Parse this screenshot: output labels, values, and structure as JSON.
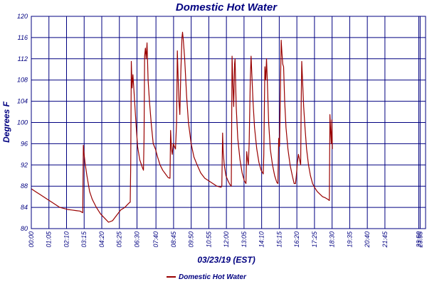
{
  "chart_data": {
    "type": "line",
    "title": "Domestic Hot Water",
    "xlabel": "03/23/19 (EST)",
    "ylabel": "Degrees F",
    "ylim": [
      80,
      120
    ],
    "yticks": [
      80,
      84,
      88,
      92,
      96,
      100,
      104,
      108,
      112,
      116,
      120
    ],
    "xlim": [
      0,
      1455
    ],
    "xticks": [
      {
        "label": "00:00",
        "t": 0
      },
      {
        "label": "01:05",
        "t": 65
      },
      {
        "label": "02:10",
        "t": 130
      },
      {
        "label": "03:15",
        "t": 195
      },
      {
        "label": "04:20",
        "t": 260
      },
      {
        "label": "05:25",
        "t": 325
      },
      {
        "label": "06:30",
        "t": 390
      },
      {
        "label": "07:40",
        "t": 460
      },
      {
        "label": "08:45",
        "t": 525
      },
      {
        "label": "09:50",
        "t": 590
      },
      {
        "label": "10:55",
        "t": 655
      },
      {
        "label": "12:00",
        "t": 720
      },
      {
        "label": "13:05",
        "t": 785
      },
      {
        "label": "14:10",
        "t": 850
      },
      {
        "label": "15:15",
        "t": 915
      },
      {
        "label": "16:20",
        "t": 980
      },
      {
        "label": "17:25",
        "t": 1045
      },
      {
        "label": "18:30",
        "t": 1110
      },
      {
        "label": "19:35",
        "t": 1175
      },
      {
        "label": "20:40",
        "t": 1240
      },
      {
        "label": "21:45",
        "t": 1305
      },
      {
        "label": "23:50",
        "t": 1430
      },
      {
        "label": "23:55",
        "t": 1435
      }
    ],
    "grid": true,
    "legend_position": "bottom",
    "series": [
      {
        "name": "Domestic Hot Water",
        "color": "#990000",
        "points": [
          [
            0,
            87.5
          ],
          [
            15,
            87
          ],
          [
            30,
            86.5
          ],
          [
            45,
            86
          ],
          [
            60,
            85.5
          ],
          [
            75,
            85
          ],
          [
            90,
            84.5
          ],
          [
            105,
            84
          ],
          [
            120,
            83.8
          ],
          [
            135,
            83.6
          ],
          [
            150,
            83.5
          ],
          [
            165,
            83.4
          ],
          [
            180,
            83.3
          ],
          [
            190,
            83
          ],
          [
            192,
            95.7
          ],
          [
            195,
            94
          ],
          [
            198,
            92.5
          ],
          [
            205,
            90
          ],
          [
            215,
            87
          ],
          [
            225,
            85.5
          ],
          [
            240,
            84
          ],
          [
            255,
            82.8
          ],
          [
            270,
            82
          ],
          [
            285,
            81.2
          ],
          [
            300,
            81.5
          ],
          [
            315,
            82.5
          ],
          [
            330,
            83.5
          ],
          [
            345,
            84
          ],
          [
            360,
            84.8
          ],
          [
            365,
            85
          ],
          [
            367,
            92
          ],
          [
            369,
            111.5
          ],
          [
            372,
            106.5
          ],
          [
            375,
            109
          ],
          [
            380,
            105
          ],
          [
            386,
            100
          ],
          [
            392,
            95.5
          ],
          [
            400,
            93
          ],
          [
            410,
            91.5
          ],
          [
            414,
            91
          ],
          [
            416,
            97
          ],
          [
            418,
            112.5
          ],
          [
            421,
            114
          ],
          [
            424,
            112
          ],
          [
            427,
            115
          ],
          [
            431,
            108
          ],
          [
            436,
            104
          ],
          [
            443,
            99.5
          ],
          [
            450,
            96
          ],
          [
            458,
            95
          ],
          [
            466,
            93.5
          ],
          [
            475,
            92
          ],
          [
            485,
            91
          ],
          [
            495,
            90.3
          ],
          [
            505,
            89.6
          ],
          [
            512,
            89.5
          ],
          [
            514,
            98.5
          ],
          [
            517,
            95
          ],
          [
            520,
            94
          ],
          [
            524,
            96
          ],
          [
            528,
            95.5
          ],
          [
            532,
            95
          ],
          [
            536,
            100
          ],
          [
            539,
            113.5
          ],
          [
            542,
            108
          ],
          [
            545,
            104
          ],
          [
            548,
            101.5
          ],
          [
            552,
            110
          ],
          [
            556,
            116
          ],
          [
            558,
            117
          ],
          [
            561,
            115.5
          ],
          [
            566,
            112
          ],
          [
            573,
            105
          ],
          [
            580,
            100
          ],
          [
            590,
            96
          ],
          [
            600,
            93.5
          ],
          [
            612,
            92
          ],
          [
            625,
            90.5
          ],
          [
            640,
            89.5
          ],
          [
            655,
            89
          ],
          [
            670,
            88.5
          ],
          [
            685,
            88
          ],
          [
            700,
            87.8
          ],
          [
            703,
            88
          ],
          [
            706,
            98
          ],
          [
            708,
            94.5
          ],
          [
            712,
            92
          ],
          [
            718,
            90
          ],
          [
            726,
            89
          ],
          [
            733,
            88.3
          ],
          [
            738,
            88
          ],
          [
            741,
            112.5
          ],
          [
            744,
            107
          ],
          [
            747,
            103
          ],
          [
            750,
            111
          ],
          [
            752,
            112
          ],
          [
            756,
            103
          ],
          [
            762,
            97
          ],
          [
            770,
            93
          ],
          [
            778,
            90.5
          ],
          [
            786,
            89
          ],
          [
            792,
            88.5
          ],
          [
            795,
            94.5
          ],
          [
            798,
            93
          ],
          [
            801,
            92
          ],
          [
            804,
            96
          ],
          [
            808,
            108
          ],
          [
            811,
            112.5
          ],
          [
            814,
            109
          ],
          [
            818,
            104
          ],
          [
            824,
            99
          ],
          [
            832,
            95
          ],
          [
            840,
            92.5
          ],
          [
            848,
            91
          ],
          [
            856,
            90.3
          ],
          [
            858,
            94
          ],
          [
            860,
            103
          ],
          [
            862,
            110.5
          ],
          [
            865,
            108
          ],
          [
            868,
            112
          ],
          [
            871,
            108
          ],
          [
            876,
            100
          ],
          [
            882,
            95
          ],
          [
            890,
            92
          ],
          [
            898,
            90
          ],
          [
            906,
            88.7
          ],
          [
            910,
            88.5
          ],
          [
            913,
            97
          ],
          [
            916,
            95.5
          ],
          [
            919,
            105
          ],
          [
            922,
            115.5
          ],
          [
            925,
            113
          ],
          [
            928,
            111
          ],
          [
            931,
            110.5
          ],
          [
            935,
            104
          ],
          [
            940,
            99
          ],
          [
            947,
            95
          ],
          [
            955,
            92
          ],
          [
            963,
            90
          ],
          [
            970,
            88.5
          ],
          [
            975,
            88.5
          ],
          [
            978,
            90
          ],
          [
            982,
            92.5
          ],
          [
            986,
            94
          ],
          [
            990,
            93
          ],
          [
            994,
            92
          ],
          [
            996,
            103.5
          ],
          [
            998,
            111.5
          ],
          [
            1001,
            108
          ],
          [
            1005,
            103
          ],
          [
            1010,
            99
          ],
          [
            1016,
            95
          ],
          [
            1023,
            92
          ],
          [
            1030,
            90
          ],
          [
            1038,
            88.5
          ],
          [
            1045,
            87.8
          ],
          [
            1055,
            87
          ],
          [
            1065,
            86.5
          ],
          [
            1075,
            86
          ],
          [
            1085,
            85.8
          ],
          [
            1095,
            85.5
          ],
          [
            1100,
            85.3
          ],
          [
            1102,
            101.5
          ],
          [
            1105,
            98
          ],
          [
            1107,
            96
          ],
          [
            1109,
            100.5
          ],
          [
            1111,
            95
          ]
        ]
      }
    ]
  }
}
